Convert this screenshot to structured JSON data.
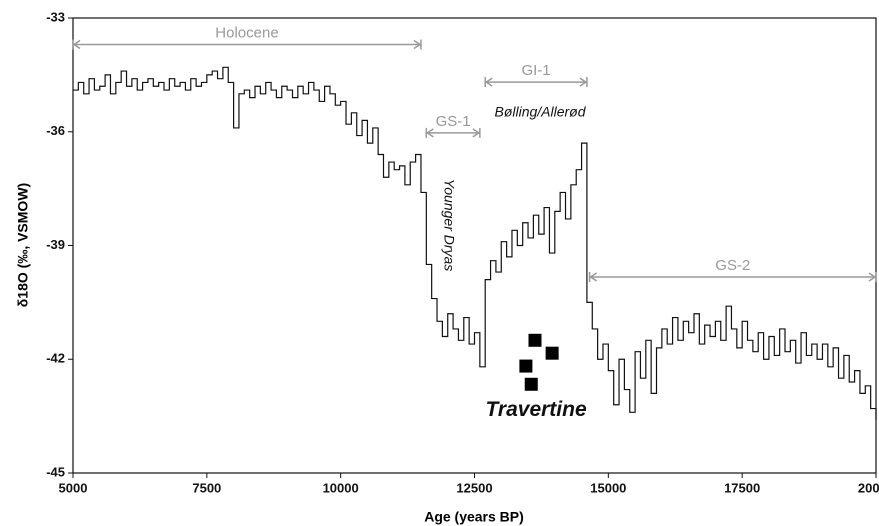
{
  "chart_data": {
    "type": "line",
    "x_label": "Age (years BP)",
    "y_label": "δ18O (‰, VSMOW)",
    "xlim": [
      5000,
      20000
    ],
    "xticks": [
      5000,
      7500,
      10000,
      12500,
      15000,
      17500,
      20000
    ],
    "ylim": [
      -45,
      -33
    ],
    "yticks": [
      -33,
      -36,
      -39,
      -42,
      -45
    ],
    "x": [
      5000,
      5100,
      5200,
      5300,
      5400,
      5500,
      5600,
      5700,
      5800,
      5900,
      6000,
      6100,
      6200,
      6300,
      6400,
      6500,
      6600,
      6700,
      6800,
      6900,
      7000,
      7100,
      7200,
      7300,
      7400,
      7500,
      7600,
      7700,
      7800,
      7900,
      8000,
      8100,
      8200,
      8300,
      8400,
      8500,
      8600,
      8700,
      8800,
      8900,
      9000,
      9100,
      9200,
      9300,
      9400,
      9500,
      9600,
      9700,
      9800,
      9900,
      10000,
      10100,
      10200,
      10300,
      10400,
      10500,
      10600,
      10700,
      10800,
      10900,
      11000,
      11100,
      11200,
      11300,
      11400,
      11500,
      11600,
      11700,
      11800,
      11900,
      12000,
      12100,
      12200,
      12300,
      12400,
      12500,
      12600,
      12700,
      12800,
      12900,
      13000,
      13100,
      13200,
      13300,
      13400,
      13500,
      13600,
      13700,
      13800,
      13900,
      14000,
      14100,
      14200,
      14300,
      14400,
      14500,
      14600,
      14700,
      14800,
      14900,
      15000,
      15100,
      15200,
      15300,
      15400,
      15500,
      15600,
      15700,
      15800,
      15900,
      16000,
      16100,
      16200,
      16300,
      16400,
      16500,
      16600,
      16700,
      16800,
      16900,
      17000,
      17100,
      17200,
      17300,
      17400,
      17500,
      17600,
      17700,
      17800,
      17900,
      18000,
      18100,
      18200,
      18300,
      18400,
      18500,
      18600,
      18700,
      18800,
      18900,
      19000,
      19100,
      19200,
      19300,
      19400,
      19500,
      19600,
      19700,
      19800,
      19900,
      20000
    ],
    "series": [
      {
        "name": "δ18O",
        "color": "#111111",
        "values": [
          -34.9,
          -34.7,
          -35.0,
          -34.6,
          -34.9,
          -34.8,
          -34.5,
          -35.0,
          -34.7,
          -34.4,
          -34.8,
          -34.6,
          -34.9,
          -34.7,
          -34.6,
          -34.8,
          -34.7,
          -34.9,
          -34.6,
          -34.8,
          -34.7,
          -34.9,
          -34.6,
          -34.8,
          -34.7,
          -34.5,
          -34.4,
          -34.6,
          -34.3,
          -34.7,
          -35.9,
          -35.0,
          -34.9,
          -35.1,
          -34.8,
          -35.0,
          -34.7,
          -34.9,
          -35.1,
          -34.8,
          -34.9,
          -35.1,
          -34.8,
          -35.0,
          -34.7,
          -34.9,
          -35.2,
          -34.8,
          -35.0,
          -35.3,
          -35.2,
          -35.8,
          -35.5,
          -36.1,
          -35.7,
          -36.3,
          -35.9,
          -36.6,
          -37.2,
          -36.8,
          -37.0,
          -36.9,
          -37.4,
          -36.8,
          -36.6,
          -37.6,
          -39.5,
          -40.4,
          -41.0,
          -41.4,
          -40.8,
          -41.2,
          -41.5,
          -40.9,
          -41.6,
          -41.3,
          -42.2,
          -39.9,
          -39.4,
          -39.7,
          -38.9,
          -39.3,
          -38.6,
          -39.0,
          -38.4,
          -38.8,
          -38.2,
          -38.7,
          -38.0,
          -39.2,
          -38.1,
          -37.6,
          -38.3,
          -37.4,
          -37.0,
          -36.3,
          -40.5,
          -41.2,
          -42.0,
          -41.6,
          -42.3,
          -43.2,
          -42.0,
          -42.8,
          -43.4,
          -41.8,
          -42.5,
          -41.5,
          -42.9,
          -41.7,
          -41.2,
          -41.6,
          -40.9,
          -41.5,
          -41.0,
          -41.3,
          -40.8,
          -41.6,
          -41.1,
          -41.4,
          -41.0,
          -41.5,
          -40.6,
          -41.2,
          -41.7,
          -41.0,
          -41.5,
          -41.8,
          -41.3,
          -42.0,
          -41.4,
          -41.9,
          -41.2,
          -41.8,
          -41.5,
          -42.1,
          -41.3,
          -41.9,
          -41.6,
          -42.0,
          -41.6,
          -42.2,
          -41.7,
          -42.5,
          -41.9,
          -42.6,
          -42.3,
          -42.9,
          -42.7,
          -43.3,
          -43.6
        ]
      },
      {
        "name": "Travertine",
        "type": "scatter",
        "color": "#000000",
        "x": [
          13630,
          13950,
          13460,
          13560
        ],
        "values": [
          -41.5,
          -41.84,
          -42.18,
          -42.66
        ]
      }
    ],
    "periods": [
      {
        "label": "Holocene",
        "x": [
          5000,
          11500
        ],
        "y": -33.7
      },
      {
        "label": "GS-1",
        "x": [
          11600,
          12600
        ],
        "y": -36.03
      },
      {
        "label": "GI-1",
        "x": [
          12700,
          14600
        ],
        "y": -34.69
      },
      {
        "label": "GS-2",
        "x": [
          14650,
          20000
        ],
        "y": -39.83
      }
    ],
    "annotations": [
      "Bølling/Allerød",
      "Younger Dryas"
    ]
  }
}
